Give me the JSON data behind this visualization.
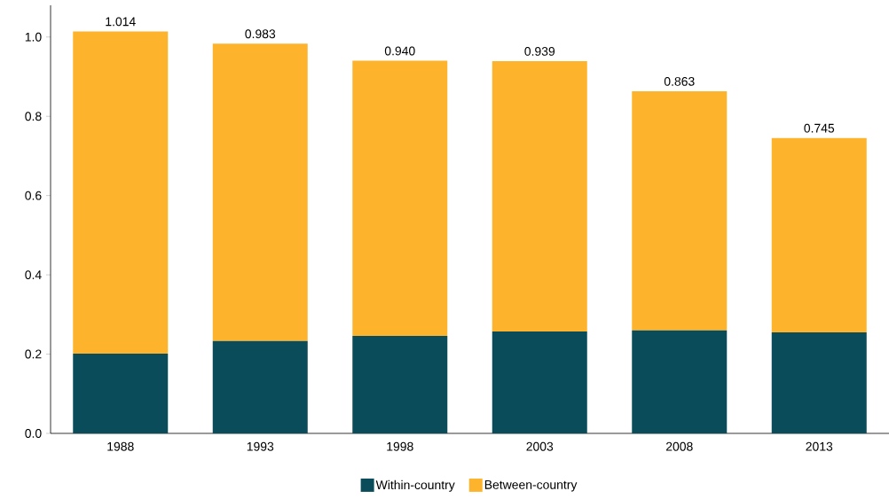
{
  "chart_data": {
    "type": "bar",
    "stacked": true,
    "categories": [
      "1988",
      "1993",
      "1998",
      "2003",
      "2008",
      "2013"
    ],
    "series": [
      {
        "name": "Within-country",
        "color": "#0b4c5a",
        "values": [
          0.201,
          0.233,
          0.246,
          0.257,
          0.26,
          0.255
        ]
      },
      {
        "name": "Between-country",
        "color": "#fdb42c",
        "values": [
          0.813,
          0.75,
          0.694,
          0.682,
          0.603,
          0.49
        ]
      }
    ],
    "totals": [
      "1.014",
      "0.983",
      "0.940",
      "0.939",
      "0.863",
      "0.745"
    ],
    "ylim": [
      0,
      1.08
    ],
    "yticks": [
      {
        "value": 0,
        "label": "0.0"
      },
      0.2,
      0.4,
      0.6,
      0.8,
      {
        "value": 1,
        "label": "1.0"
      }
    ],
    "grid": false,
    "legend": "bottom"
  }
}
